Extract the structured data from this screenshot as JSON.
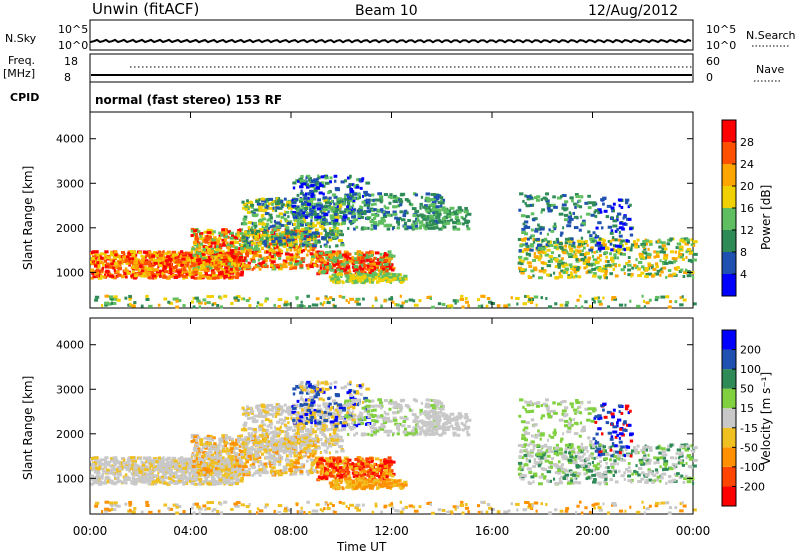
{
  "header": {
    "station": "Unwin (fitACF)",
    "beam": "Beam 10",
    "date": "12/Aug/2012"
  },
  "top_panels": {
    "nsky_label": "N.Sky",
    "nsearch_label": "N.Search",
    "left_ticks": [
      "10^5",
      "10^0"
    ],
    "right_ticks": [
      "10^5",
      "10^0"
    ],
    "freq_label_1": "Freq.",
    "freq_label_2": "[MHz]",
    "freq_ticks": [
      "18",
      "8"
    ],
    "nave_label": "Nave",
    "nave_ticks": [
      "60",
      "0"
    ],
    "cpid_label": "CPID",
    "cpid_text": "normal (fast stereo) 153 RF"
  },
  "chart_data": [
    {
      "type": "heatmap",
      "ylabel": "Slant Range [km]",
      "yticks": [
        "4000",
        "3000",
        "2000",
        "1000"
      ],
      "ylim": [
        200,
        4600
      ],
      "colorbar": {
        "label": "Power [dB]",
        "ticks": [
          "28",
          "24",
          "20",
          "16",
          "12",
          "8",
          "4"
        ],
        "colors": [
          "#0000ff",
          "#1f52b0",
          "#2e8b57",
          "#5fbf60",
          "#f0d000",
          "#ffa500",
          "#ff5000",
          "#ff0000"
        ]
      }
    },
    {
      "type": "heatmap",
      "ylabel": "Slant Range [km]",
      "xlabel": "Time UT",
      "yticks": [
        "4000",
        "3000",
        "2000",
        "1000"
      ],
      "xticks": [
        "00:00",
        "04:00",
        "08:00",
        "12:00",
        "16:00",
        "20:00",
        "00:00"
      ],
      "ylim": [
        200,
        4600
      ],
      "colorbar": {
        "label": "Velocity [m s⁻¹]",
        "ticks": [
          "200",
          "100",
          "50",
          "15",
          "-15",
          "-50",
          "-100",
          "-200"
        ],
        "colors": [
          "#ff0000",
          "#ff4500",
          "#ff9000",
          "#f0c020",
          "#c8c8c8",
          "#80d040",
          "#2e8b57",
          "#1f52b0",
          "#0000ff"
        ]
      }
    }
  ]
}
